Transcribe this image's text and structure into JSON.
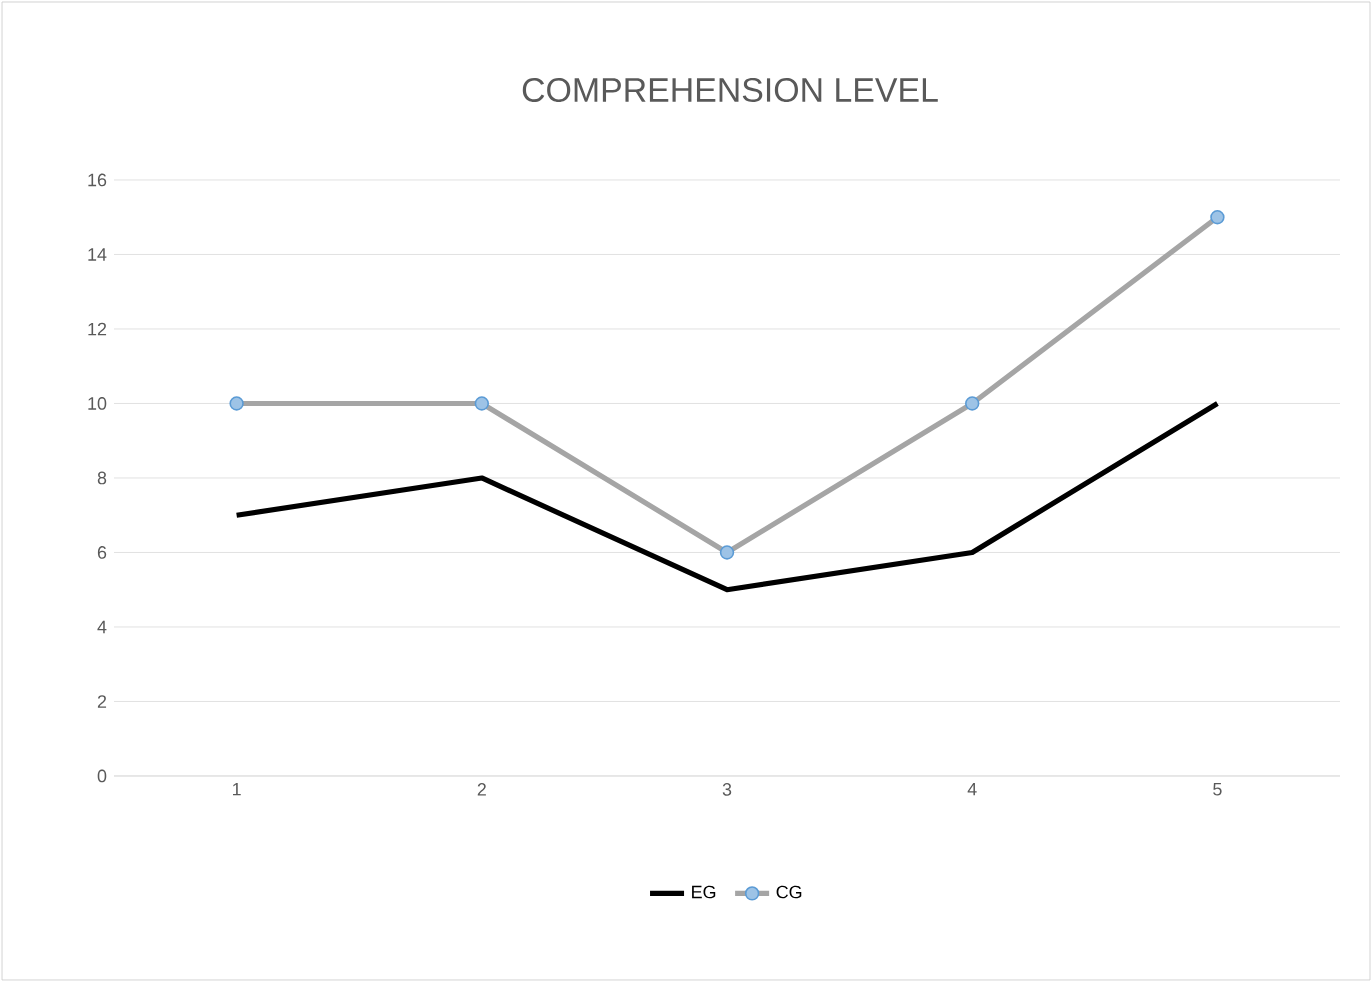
{
  "chart_data": {
    "type": "line",
    "title": "COMPREHENSION LEVEL",
    "categories": [
      "1",
      "2",
      "3",
      "4",
      "5"
    ],
    "series": [
      {
        "name": "EG",
        "color": "#000000",
        "values": [
          7,
          8,
          5,
          6,
          10
        ],
        "marker": "none"
      },
      {
        "name": "CG",
        "color": "#a5a5a5",
        "values": [
          10,
          10,
          6,
          10,
          15
        ],
        "marker": "circle"
      }
    ],
    "ylim": [
      0,
      16
    ],
    "yticks": [
      0,
      2,
      4,
      6,
      8,
      10,
      12,
      14,
      16
    ],
    "grid": "y",
    "legend": "bottom"
  }
}
